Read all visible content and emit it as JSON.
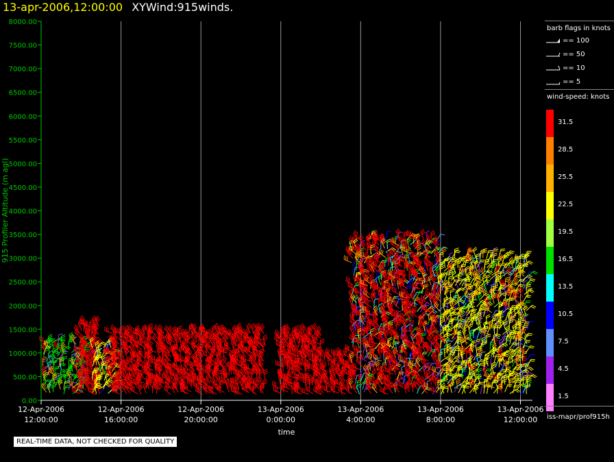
{
  "header": {
    "datetime": "13-apr-2006,12:00:00",
    "product": "XYWind:915winds."
  },
  "colors": {
    "date_text": "#ffff00",
    "axis_green": "#00c800",
    "grid": "#9a9a9a",
    "background": "#000000"
  },
  "chart_data": {
    "type": "wind-barb time-height",
    "ylabel": "915 Profiler Altitude (m agl)",
    "xlabel": "time",
    "ylim": [
      0,
      8000
    ],
    "y_ticks": [
      "0.00",
      "500.00",
      "1000.00",
      "1500.00",
      "2000.00",
      "2500.00",
      "3000.00",
      "3500.00",
      "4000.00",
      "4500.00",
      "5000.00",
      "5500.00",
      "6000.00",
      "6500.00",
      "7000.00",
      "7500.00",
      "8000.00"
    ],
    "x_ticks": [
      {
        "date": "12-Apr-2006",
        "time": "12:00:00",
        "hours": 0
      },
      {
        "date": "12-Apr-2006",
        "time": "16:00:00",
        "hours": 4
      },
      {
        "date": "12-Apr-2006",
        "time": "20:00:00",
        "hours": 8
      },
      {
        "date": "13-Apr-2006",
        "time": "0:00:00",
        "hours": 12
      },
      {
        "date": "13-Apr-2006",
        "time": "4:00:00",
        "hours": 16
      },
      {
        "date": "13-Apr-2006",
        "time": "8:00:00",
        "hours": 20
      },
      {
        "date": "13-Apr-2006",
        "time": "12:00:00",
        "hours": 24
      }
    ],
    "xlim_hours": [
      0,
      24.6
    ],
    "grid_vertical": true,
    "barb_data_summary": [
      {
        "start_hours": 0.1,
        "end_hours": 2.2,
        "top_m": 1250,
        "dominant_knots": 16.5,
        "note": "mixed 4.5-25.5 kt near surface"
      },
      {
        "start_hours": 2.0,
        "end_hours": 3.0,
        "top_m": 1600,
        "dominant_knots": 31.5
      },
      {
        "start_hours": 2.6,
        "end_hours": 3.6,
        "top_m": 1150,
        "dominant_knots": 22.5,
        "note": "mixed 10.5-25.5 kt"
      },
      {
        "start_hours": 3.6,
        "end_hours": 11.2,
        "top_m": 1400,
        "dominant_knots": 31.5
      },
      {
        "start_hours": 12.0,
        "end_hours": 14.0,
        "top_m": 1400,
        "dominant_knots": 31.5
      },
      {
        "start_hours": 14.0,
        "end_hours": 15.6,
        "top_m": 1000,
        "dominant_knots": 31.5
      },
      {
        "start_hours": 15.6,
        "end_hours": 20.0,
        "top_m": 3450,
        "dominant_knots": 31.5,
        "note": "many 7.5-28.5 kt barbs"
      },
      {
        "start_hours": 20.0,
        "end_hours": 24.4,
        "top_m": 3000,
        "dominant_knots": 22.5,
        "note": "mixed 4.5-31.5 kt"
      }
    ]
  },
  "legend": {
    "barb_title": "barb flags in knots",
    "barb_items": [
      "== 100",
      "== 50",
      "== 10",
      "== 5"
    ],
    "speed_title": "wind-speed: knots",
    "speeds": [
      {
        "label": "31.5",
        "color": "#ff0000"
      },
      {
        "label": "28.5",
        "color": "#ff8000"
      },
      {
        "label": "25.5",
        "color": "#ffb000"
      },
      {
        "label": "22.5",
        "color": "#ffff00"
      },
      {
        "label": "19.5",
        "color": "#a0ff40"
      },
      {
        "label": "16.5",
        "color": "#00e000"
      },
      {
        "label": "13.5",
        "color": "#00ffff"
      },
      {
        "label": "10.5",
        "color": "#0000ff"
      },
      {
        "label": "7.5",
        "color": "#6090ff"
      },
      {
        "label": "4.5",
        "color": "#a020f0"
      },
      {
        "label": "1.5",
        "color": "#ff80ff"
      }
    ],
    "source": "iss-mapr/prof915h"
  },
  "footer": {
    "qc_note": "REAL-TIME DATA, NOT CHECKED FOR QUALITY"
  }
}
